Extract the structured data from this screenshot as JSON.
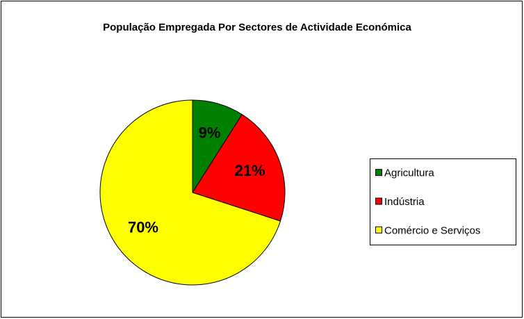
{
  "chart_data": {
    "type": "pie",
    "title": "População Empregada Por Sectores de Actividade Económica",
    "categories": [
      "Agricultura",
      "Indústria",
      "Comércio e Serviços"
    ],
    "values": [
      9,
      21,
      70
    ],
    "value_labels": [
      "9%",
      "21%",
      "70%"
    ],
    "colors": [
      "#008000",
      "#ff0000",
      "#ffff00"
    ],
    "legend": "right"
  }
}
